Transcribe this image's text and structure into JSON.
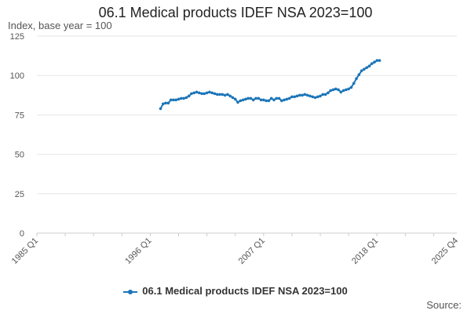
{
  "chart_data": {
    "type": "line",
    "title": "06.1 Medical products IDEF NSA 2023=100",
    "ylabel": "Index, base year = 100",
    "xlabel": "",
    "ylim": [
      0,
      125
    ],
    "yticks": [
      0,
      25,
      50,
      75,
      100,
      125
    ],
    "xlim": [
      1985.0,
      2025.75
    ],
    "xticks": [
      {
        "label": "1985 Q1",
        "x": 1985.0
      },
      {
        "label": "1996 Q1",
        "x": 1996.0
      },
      {
        "label": "2007 Q1",
        "x": 2007.0
      },
      {
        "label": "2018 Q1",
        "x": 2018.0
      },
      {
        "label": "2025 Q4",
        "x": 2025.75
      }
    ],
    "grid": true,
    "legend_position": "bottom",
    "color": "#1b75b8",
    "series": [
      {
        "name": "06.1 Medical products IDEF NSA 2023=100",
        "points": [
          [
            1997.0,
            79
          ],
          [
            1997.25,
            82
          ],
          [
            1997.5,
            82.5
          ],
          [
            1997.75,
            82.5
          ],
          [
            1998.0,
            84.5
          ],
          [
            1998.25,
            84.5
          ],
          [
            1998.5,
            84.5
          ],
          [
            1998.75,
            85
          ],
          [
            1999.0,
            85.5
          ],
          [
            1999.25,
            85.5
          ],
          [
            1999.5,
            86
          ],
          [
            1999.75,
            87
          ],
          [
            2000.0,
            88.5
          ],
          [
            2000.25,
            89
          ],
          [
            2000.5,
            89.5
          ],
          [
            2000.75,
            89
          ],
          [
            2001.0,
            88.5
          ],
          [
            2001.25,
            88.5
          ],
          [
            2001.5,
            89
          ],
          [
            2001.75,
            89.5
          ],
          [
            2002.0,
            89
          ],
          [
            2002.25,
            88.5
          ],
          [
            2002.5,
            88
          ],
          [
            2002.75,
            88
          ],
          [
            2003.0,
            88
          ],
          [
            2003.25,
            87.5
          ],
          [
            2003.5,
            88
          ],
          [
            2003.75,
            87
          ],
          [
            2004.0,
            86
          ],
          [
            2004.25,
            85
          ],
          [
            2004.5,
            83
          ],
          [
            2004.75,
            84
          ],
          [
            2005.0,
            84.5
          ],
          [
            2005.25,
            85
          ],
          [
            2005.5,
            85.5
          ],
          [
            2005.75,
            85.5
          ],
          [
            2006.0,
            84.5
          ],
          [
            2006.25,
            85.5
          ],
          [
            2006.5,
            85.5
          ],
          [
            2006.75,
            84.5
          ],
          [
            2007.0,
            84.5
          ],
          [
            2007.25,
            84
          ],
          [
            2007.5,
            84
          ],
          [
            2007.75,
            85.5
          ],
          [
            2008.0,
            84.5
          ],
          [
            2008.25,
            85.5
          ],
          [
            2008.5,
            85.5
          ],
          [
            2008.75,
            84
          ],
          [
            2009.0,
            84.5
          ],
          [
            2009.25,
            85
          ],
          [
            2009.5,
            85.5
          ],
          [
            2009.75,
            86.5
          ],
          [
            2010.0,
            86.5
          ],
          [
            2010.25,
            87
          ],
          [
            2010.5,
            87.5
          ],
          [
            2010.75,
            87.5
          ],
          [
            2011.0,
            88
          ],
          [
            2011.25,
            87.5
          ],
          [
            2011.5,
            87
          ],
          [
            2011.75,
            86.5
          ],
          [
            2012.0,
            86
          ],
          [
            2012.25,
            86.5
          ],
          [
            2012.5,
            87
          ],
          [
            2012.75,
            88
          ],
          [
            2013.0,
            88
          ],
          [
            2013.25,
            89
          ],
          [
            2013.5,
            90.5
          ],
          [
            2013.75,
            91
          ],
          [
            2014.0,
            91.5
          ],
          [
            2014.25,
            91
          ],
          [
            2014.5,
            89.5
          ],
          [
            2014.75,
            90.5
          ],
          [
            2015.0,
            91
          ],
          [
            2015.25,
            91.5
          ],
          [
            2015.5,
            92.5
          ],
          [
            2015.75,
            95
          ],
          [
            2016.0,
            98
          ],
          [
            2016.25,
            100.5
          ],
          [
            2016.5,
            103
          ],
          [
            2016.75,
            104
          ],
          [
            2017.0,
            105
          ],
          [
            2017.25,
            106
          ],
          [
            2017.5,
            107.5
          ],
          [
            2017.75,
            108.5
          ],
          [
            2018.0,
            109.5
          ],
          [
            2018.25,
            109.5
          ]
        ]
      }
    ]
  },
  "source_label": "Source:"
}
